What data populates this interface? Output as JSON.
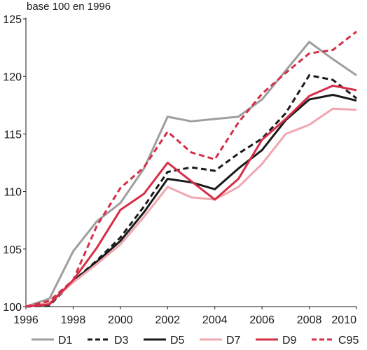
{
  "chart_data": {
    "type": "line",
    "title": "",
    "ylabel": "base 100 en 1996",
    "xlabel": "",
    "x": [
      1996,
      1997,
      1998,
      1999,
      2000,
      2001,
      2002,
      2003,
      2004,
      2005,
      2006,
      2007,
      2008,
      2009,
      2010
    ],
    "xlim": [
      1996,
      2010
    ],
    "ylim": [
      100,
      125
    ],
    "x_ticks": [
      "1996",
      "1998",
      "2000",
      "2002",
      "2004",
      "2006",
      "2008",
      "2010"
    ],
    "y_ticks": [
      "100",
      "105",
      "110",
      "115",
      "120",
      "125"
    ],
    "grid": false,
    "legend_position": "bottom",
    "series": [
      {
        "name": "D1",
        "color": "#9e9e9e",
        "dash": "solid",
        "values": [
          100,
          100.7,
          104.8,
          107.4,
          109.0,
          112.0,
          116.5,
          116.1,
          116.3,
          116.5,
          118.0,
          120.5,
          123.0,
          121.5,
          120.1
        ]
      },
      {
        "name": "D3",
        "color": "#1a1a1a",
        "dash": "dashed",
        "values": [
          100,
          100.1,
          102.2,
          104.0,
          106.0,
          108.7,
          111.7,
          112.1,
          111.8,
          113.3,
          114.6,
          116.8,
          120.1,
          119.7,
          118.1
        ]
      },
      {
        "name": "D5",
        "color": "#1a1a1a",
        "dash": "solid",
        "values": [
          100,
          100.3,
          102.2,
          103.9,
          105.7,
          108.2,
          111.1,
          110.8,
          110.2,
          112.0,
          113.6,
          116.2,
          118.0,
          118.4,
          117.9
        ]
      },
      {
        "name": "D7",
        "color": "#f0a8b0",
        "dash": "solid",
        "values": [
          100,
          100.3,
          102.1,
          103.7,
          105.4,
          107.8,
          110.4,
          109.5,
          109.3,
          110.4,
          112.4,
          115.0,
          115.8,
          117.2,
          117.1
        ]
      },
      {
        "name": "D9",
        "color": "#d62e48",
        "dash": "solid",
        "values": [
          100,
          100.2,
          102.3,
          105.1,
          108.4,
          109.8,
          112.5,
          110.9,
          109.3,
          111.1,
          114.5,
          116.3,
          118.3,
          119.2,
          118.8
        ]
      },
      {
        "name": "C95",
        "color": "#d62e48",
        "dash": "dashed",
        "values": [
          100,
          100.5,
          102.3,
          107.0,
          110.3,
          112.1,
          115.2,
          113.4,
          112.8,
          116.0,
          118.5,
          120.3,
          122.0,
          122.3,
          123.9
        ]
      }
    ]
  }
}
